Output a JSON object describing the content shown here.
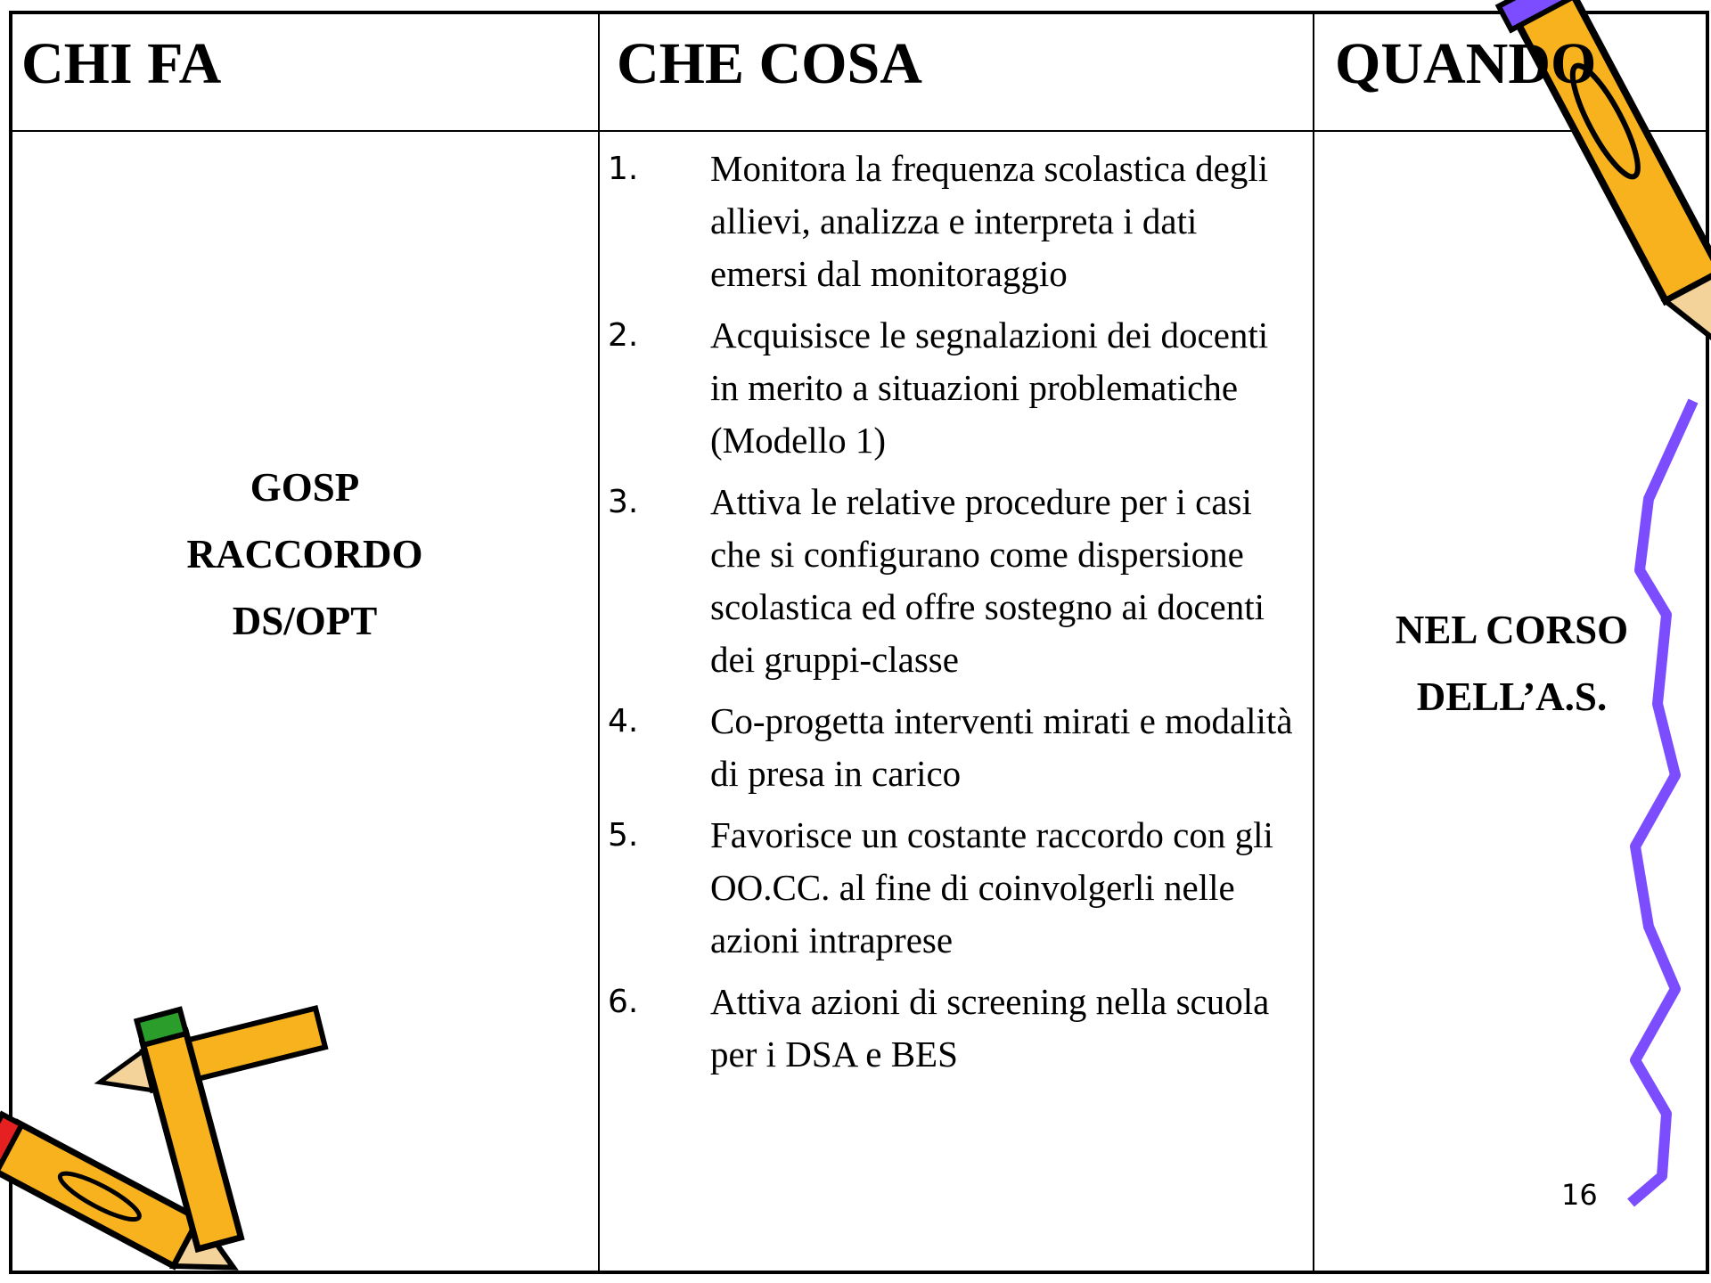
{
  "table": {
    "headers": [
      "CHI FA",
      "CHE COSA",
      "QUANDO"
    ],
    "who": [
      "GOSP",
      "RACCORDO",
      "DS/OPT"
    ],
    "items": [
      {
        "number": "1.",
        "text": "Monitora la frequenza scolastica degli allievi, analizza e interpreta i dati emersi dal monitoraggio"
      },
      {
        "number": "2.",
        "text": "Acquisisce le segnalazioni dei docenti in merito a situazioni problematiche  (Modello 1)"
      },
      {
        "number": "3.",
        "text": " Attiva le relative procedure per i casi che si configurano come dispersione scolastica ed offre sostegno ai docenti dei gruppi-classe"
      },
      {
        "number": "4.",
        "text": "Co-progetta interventi mirati e modalità di presa in carico"
      },
      {
        "number": "5.",
        "text": "Favorisce un costante raccordo con gli OO.CC. al fine di coinvolgerli nelle azioni intraprese"
      },
      {
        "number": "6.",
        "text": "Attiva azioni di screening nella scuola per i DSA e BES"
      }
    ],
    "when": [
      "NEL CORSO",
      "DELL’A.S."
    ]
  },
  "page_number": "16"
}
